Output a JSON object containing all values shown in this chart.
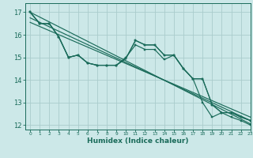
{
  "title": "",
  "xlabel": "Humidex (Indice chaleur)",
  "xlim": [
    -0.5,
    23
  ],
  "ylim": [
    11.8,
    17.4
  ],
  "yticks": [
    12,
    13,
    14,
    15,
    16,
    17
  ],
  "xticks": [
    0,
    1,
    2,
    3,
    4,
    5,
    6,
    7,
    8,
    9,
    10,
    11,
    12,
    13,
    14,
    15,
    16,
    17,
    18,
    19,
    20,
    21,
    22,
    23
  ],
  "bg_color": "#cce8e8",
  "grid_color": "#aacccc",
  "line_color": "#1a6b5a",
  "series1": [
    17.0,
    16.5,
    16.5,
    15.9,
    15.0,
    15.1,
    14.75,
    14.65,
    14.65,
    14.65,
    14.95,
    15.75,
    15.55,
    15.55,
    15.1,
    15.1,
    14.5,
    14.05,
    13.0,
    12.35,
    12.55,
    12.35,
    12.2,
    12.0
  ],
  "series2": [
    17.0,
    16.5,
    16.5,
    15.9,
    15.0,
    15.1,
    14.75,
    14.65,
    14.65,
    14.65,
    15.0,
    15.55,
    15.35,
    15.35,
    14.9,
    15.1,
    14.5,
    14.05,
    14.05,
    12.9,
    12.55,
    12.55,
    12.35,
    12.2
  ],
  "series3": [
    17.0,
    16.5,
    16.5,
    15.9,
    15.0,
    15.1,
    14.75,
    14.65,
    14.65,
    14.65,
    14.95,
    15.75,
    15.55,
    15.55,
    15.1,
    15.1,
    14.5,
    14.05,
    14.05,
    12.9,
    12.55,
    12.55,
    12.35,
    12.2
  ],
  "reg_lines": [
    {
      "x0": 0,
      "y0": 17.0,
      "x1": 23,
      "y1": 12.05
    },
    {
      "x0": 0,
      "y0": 16.75,
      "x1": 23,
      "y1": 12.2
    },
    {
      "x0": 0,
      "y0": 16.55,
      "x1": 23,
      "y1": 12.35
    }
  ],
  "xlabel_fontsize": 6.5,
  "xtick_fontsize": 4.2,
  "ytick_fontsize": 6.0
}
